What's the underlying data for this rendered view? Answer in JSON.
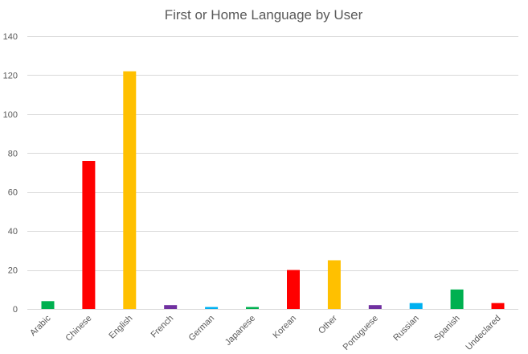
{
  "chart_data": {
    "type": "bar",
    "title": "First or Home Language by User",
    "xlabel": "",
    "ylabel": "",
    "categories": [
      "Arabic",
      "Chinese",
      "English",
      "French",
      "German",
      "Japanese",
      "Korean",
      "Other",
      "Portuguese",
      "Russian",
      "Spanish",
      "Undeclared"
    ],
    "values": [
      4,
      76,
      122,
      2,
      1,
      1,
      20,
      25,
      2,
      3,
      10,
      3
    ],
    "colors": [
      "#00b050",
      "#ff0000",
      "#ffc000",
      "#7030a0",
      "#00b0f0",
      "#00b050",
      "#ff0000",
      "#ffc000",
      "#7030a0",
      "#00b0f0",
      "#00b050",
      "#ff0000"
    ],
    "ylim": [
      0,
      140
    ],
    "yticks": [
      0,
      20,
      40,
      60,
      80,
      100,
      120,
      140
    ],
    "grid": true,
    "legend": "none"
  }
}
